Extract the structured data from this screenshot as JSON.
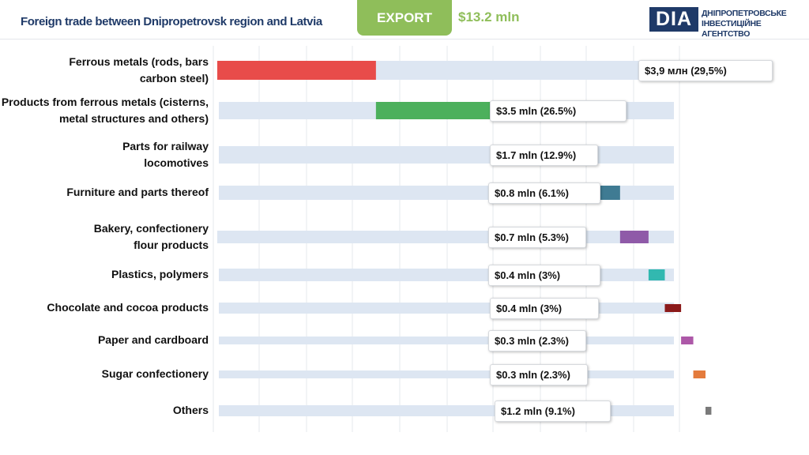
{
  "header": {
    "title": "Foreign trade between Dnipropetrovsk region and Latvia",
    "export_label": "EXPORT",
    "total": "$13.2 mln",
    "logo_mark": "DIA",
    "logo_line1": "ДНІПРОПЕТРОВСЬКЕ",
    "logo_line2": "ІНВЕСТИЦІЙНЕ АГЕНТСТВО"
  },
  "chart_data": {
    "type": "bar",
    "title": "",
    "categories": [
      "Ferrous metals (rods, bars carbon steel)",
      "Products from ferrous metals (cisterns, metal structures and others)",
      "Parts for railway locomotives",
      "Furniture and parts thereof",
      "Bakery, confectionery flour products",
      "Plastics, polymers",
      "Chocolate and cocoa products",
      "Paper and cardboard",
      "Sugar confectionery",
      "Others"
    ],
    "values": [
      3.9,
      3.5,
      1.7,
      0.8,
      0.7,
      0.4,
      0.4,
      0.3,
      0.3,
      1.2
    ],
    "shares_percent": [
      29.5,
      26.5,
      12.9,
      6.1,
      5.3,
      3,
      3,
      2.3,
      2.3,
      9.1
    ],
    "colors": [
      "#e84c4a",
      "#4cb05c",
      "#f8ab2f",
      "#3f7b93",
      "#8f5aa8",
      "#32b8b0",
      "#8b1a1a",
      "#ad58a8",
      "#e47b3c",
      "#7a7a7a"
    ],
    "data_labels": [
      "$3,9 млн (29,5%)",
      "$3.5 mln (26.5%)",
      "$1.7 mln (12.9%)",
      "$0.8 mln (6.1%)",
      "$0.7 mln (5.3%)",
      "$0.4 mln (3%)",
      "$0.4 mln (3%)",
      "$0.3 mln (2.3%)",
      "$0.3 mln (2.3%)",
      "$1.2 mln (9.1%)"
    ],
    "label_lines": [
      [
        "Ferrous metals (rods, bars",
        "carbon steel)"
      ],
      [
        "Products  from ferrous metals (cisterns,",
        "metal structures and others)"
      ],
      [
        "Parts  for railway",
        "locomotives"
      ],
      [
        "Furniture  and parts thereof"
      ],
      [
        "Bakery,  confectionery",
        "flour products"
      ],
      [
        "Plastics,  polymers"
      ],
      [
        "Chocolate  and cocoa products"
      ],
      [
        "Paper and cardboard"
      ],
      [
        "Sugar confectionery"
      ],
      [
        "Others"
      ]
    ],
    "unit": "mln USD",
    "grid": true,
    "orientation": "horizontal waterfall"
  }
}
